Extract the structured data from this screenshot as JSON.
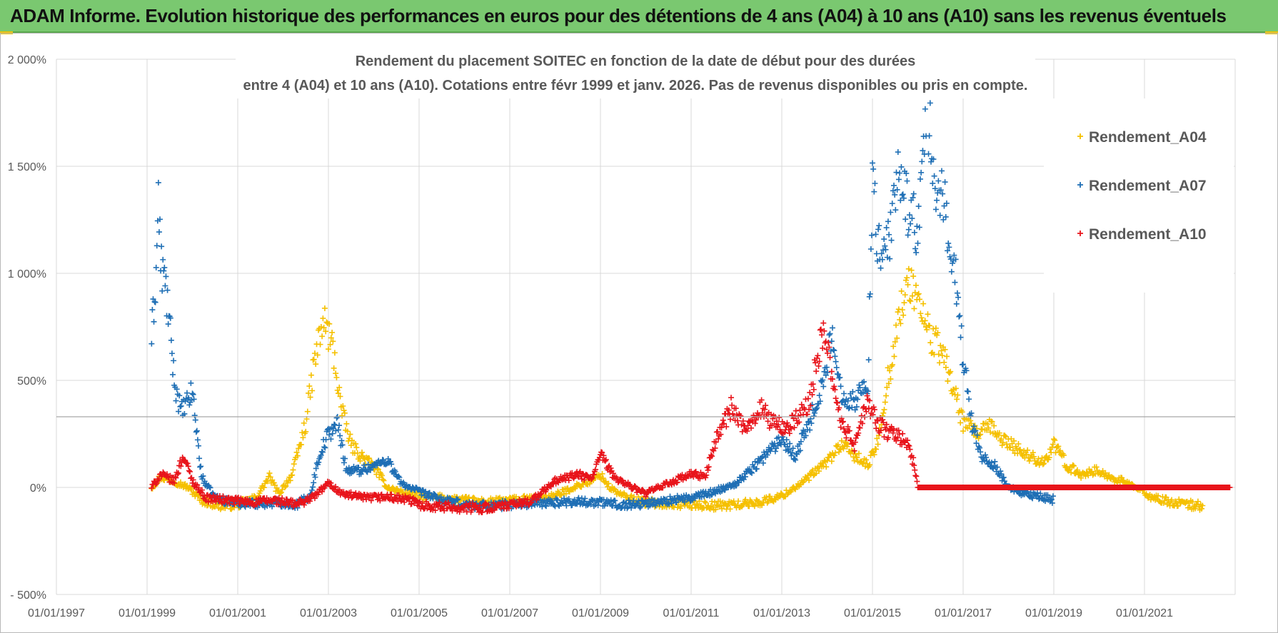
{
  "banner": {
    "title": "ADAM Informe. Evolution historique des performances en euros pour des détentions de 4 ans (A04) à 10 ans (A10) sans les revenus éventuels"
  },
  "chart_data": {
    "type": "scatter",
    "title_line1": "Rendement du placement SOITEC en fonction de la date de début pour des durées",
    "title_line2": "entre 4 (A04) et 10 ans (A10).  Cotations entre févr 1999 et janv. 2026. Pas de revenus disponibles ou pris en compte.",
    "xlabel": "",
    "ylabel": "",
    "x_ticks": [
      "01/01/1997",
      "01/01/1999",
      "01/01/2001",
      "01/01/2003",
      "01/01/2005",
      "01/01/2007",
      "01/01/2009",
      "01/01/2011",
      "01/01/2013",
      "01/01/2015",
      "01/01/2017",
      "01/01/2019",
      "01/01/2021"
    ],
    "y_ticks": [
      "- 500%",
      "0%",
      "500%",
      "1 000%",
      "1 500%",
      "2 000%"
    ],
    "y_tick_values": [
      -500,
      0,
      500,
      1000,
      1500,
      2000
    ],
    "xlim": [
      1997.0,
      2023.0
    ],
    "ylim": [
      -500,
      2000
    ],
    "reference_line_y": 330,
    "marker": "+",
    "legend_position": "right",
    "series": [
      {
        "name": "Rendement_A04",
        "color": "#f5c000",
        "points": [
          [
            1999.1,
            0
          ],
          [
            1999.3,
            50
          ],
          [
            1999.6,
            30
          ],
          [
            1999.9,
            0
          ],
          [
            2000.2,
            -60
          ],
          [
            2000.6,
            -85
          ],
          [
            2001.0,
            -80
          ],
          [
            2001.4,
            -50
          ],
          [
            2001.7,
            50
          ],
          [
            2001.9,
            -30
          ],
          [
            2002.2,
            60
          ],
          [
            2002.5,
            300
          ],
          [
            2002.7,
            600
          ],
          [
            2002.9,
            780
          ],
          [
            2003.1,
            650
          ],
          [
            2003.3,
            350
          ],
          [
            2003.5,
            200
          ],
          [
            2003.7,
            150
          ],
          [
            2004.0,
            100
          ],
          [
            2004.3,
            0
          ],
          [
            2004.6,
            -20
          ],
          [
            2005.0,
            -40
          ],
          [
            2005.5,
            -50
          ],
          [
            2006.0,
            -60
          ],
          [
            2006.5,
            -70
          ],
          [
            2007.0,
            -60
          ],
          [
            2007.5,
            -55
          ],
          [
            2008.0,
            -40
          ],
          [
            2008.4,
            0
          ],
          [
            2008.8,
            30
          ],
          [
            2009.0,
            60
          ],
          [
            2009.2,
            0
          ],
          [
            2009.5,
            -40
          ],
          [
            2010.0,
            -70
          ],
          [
            2010.5,
            -75
          ],
          [
            2011.0,
            -80
          ],
          [
            2011.5,
            -85
          ],
          [
            2012.0,
            -80
          ],
          [
            2012.5,
            -70
          ],
          [
            2013.0,
            -40
          ],
          [
            2013.5,
            30
          ],
          [
            2014.0,
            120
          ],
          [
            2014.3,
            200
          ],
          [
            2014.6,
            150
          ],
          [
            2014.9,
            100
          ],
          [
            2015.1,
            200
          ],
          [
            2015.3,
            450
          ],
          [
            2015.5,
            700
          ],
          [
            2015.7,
            900
          ],
          [
            2015.9,
            950
          ],
          [
            2016.1,
            800
          ],
          [
            2016.3,
            700
          ],
          [
            2016.6,
            600
          ],
          [
            2016.8,
            450
          ],
          [
            2017.0,
            300
          ],
          [
            2017.3,
            250
          ],
          [
            2017.6,
            280
          ],
          [
            2017.9,
            220
          ],
          [
            2018.2,
            180
          ],
          [
            2018.5,
            140
          ],
          [
            2018.8,
            120
          ],
          [
            2019.0,
            200
          ],
          [
            2019.3,
            100
          ],
          [
            2019.6,
            60
          ],
          [
            2019.9,
            80
          ],
          [
            2020.2,
            50
          ],
          [
            2020.5,
            30
          ],
          [
            2020.8,
            0
          ],
          [
            2021.2,
            -50
          ],
          [
            2021.6,
            -70
          ],
          [
            2022.0,
            -80
          ],
          [
            2022.3,
            -90
          ]
        ]
      },
      {
        "name": "Rendement_A07",
        "color": "#1f6fb5",
        "points": [
          [
            1999.1,
            700
          ],
          [
            1999.2,
            1000
          ],
          [
            1999.25,
            1370
          ],
          [
            1999.3,
            1050
          ],
          [
            1999.4,
            950
          ],
          [
            1999.5,
            750
          ],
          [
            1999.6,
            500
          ],
          [
            1999.75,
            350
          ],
          [
            1999.9,
            400
          ],
          [
            2000.0,
            450
          ],
          [
            2000.1,
            250
          ],
          [
            2000.2,
            50
          ],
          [
            2000.5,
            -50
          ],
          [
            2000.9,
            -70
          ],
          [
            2001.4,
            -75
          ],
          [
            2001.9,
            -70
          ],
          [
            2002.3,
            -80
          ],
          [
            2002.6,
            -40
          ],
          [
            2002.8,
            150
          ],
          [
            2003.0,
            250
          ],
          [
            2003.2,
            300
          ],
          [
            2003.4,
            80
          ],
          [
            2003.7,
            80
          ],
          [
            2004.0,
            100
          ],
          [
            2004.3,
            130
          ],
          [
            2004.6,
            20
          ],
          [
            2005.0,
            -20
          ],
          [
            2005.5,
            -60
          ],
          [
            2006.0,
            -80
          ],
          [
            2006.5,
            -85
          ],
          [
            2007.0,
            -80
          ],
          [
            2007.5,
            -75
          ],
          [
            2008.0,
            -70
          ],
          [
            2008.5,
            -65
          ],
          [
            2009.0,
            -70
          ],
          [
            2009.5,
            -80
          ],
          [
            2010.0,
            -75
          ],
          [
            2010.5,
            -60
          ],
          [
            2011.0,
            -50
          ],
          [
            2011.5,
            -20
          ],
          [
            2012.0,
            20
          ],
          [
            2012.5,
            120
          ],
          [
            2013.0,
            230
          ],
          [
            2013.3,
            150
          ],
          [
            2013.6,
            300
          ],
          [
            2013.9,
            480
          ],
          [
            2014.1,
            700
          ],
          [
            2014.3,
            450
          ],
          [
            2014.6,
            400
          ],
          [
            2014.9,
            500
          ],
          [
            2015.0,
            1400
          ],
          [
            2015.2,
            1000
          ],
          [
            2015.4,
            1200
          ],
          [
            2015.6,
            1480
          ],
          [
            2015.8,
            1300
          ],
          [
            2016.0,
            1200
          ],
          [
            2016.2,
            1750
          ],
          [
            2016.4,
            1400
          ],
          [
            2016.6,
            1300
          ],
          [
            2016.8,
            1050
          ],
          [
            2017.0,
            600
          ],
          [
            2017.2,
            300
          ],
          [
            2017.4,
            150
          ],
          [
            2017.7,
            100
          ],
          [
            2018.0,
            0
          ],
          [
            2018.3,
            -30
          ],
          [
            2018.6,
            -40
          ],
          [
            2018.9,
            -50
          ],
          [
            2019.0,
            -60
          ]
        ]
      },
      {
        "name": "Rendement_A10",
        "color": "#e8141b",
        "points": [
          [
            1999.1,
            0
          ],
          [
            1999.3,
            60
          ],
          [
            1999.6,
            30
          ],
          [
            1999.8,
            150
          ],
          [
            2000.0,
            30
          ],
          [
            2000.3,
            -50
          ],
          [
            2000.8,
            -60
          ],
          [
            2001.3,
            -70
          ],
          [
            2001.8,
            -60
          ],
          [
            2002.3,
            -80
          ],
          [
            2002.7,
            -40
          ],
          [
            2003.0,
            20
          ],
          [
            2003.3,
            -30
          ],
          [
            2003.8,
            -50
          ],
          [
            2004.3,
            -45
          ],
          [
            2004.8,
            -60
          ],
          [
            2005.0,
            -80
          ],
          [
            2005.5,
            -90
          ],
          [
            2006.0,
            -95
          ],
          [
            2006.5,
            -95
          ],
          [
            2007.0,
            -85
          ],
          [
            2007.5,
            -60
          ],
          [
            2008.0,
            30
          ],
          [
            2008.5,
            60
          ],
          [
            2008.8,
            40
          ],
          [
            2009.0,
            150
          ],
          [
            2009.3,
            50
          ],
          [
            2009.7,
            0
          ],
          [
            2010.0,
            -30
          ],
          [
            2010.5,
            20
          ],
          [
            2011.0,
            60
          ],
          [
            2011.3,
            50
          ],
          [
            2011.6,
            250
          ],
          [
            2011.9,
            380
          ],
          [
            2012.2,
            250
          ],
          [
            2012.5,
            380
          ],
          [
            2012.8,
            300
          ],
          [
            2013.1,
            280
          ],
          [
            2013.4,
            330
          ],
          [
            2013.6,
            400
          ],
          [
            2013.9,
            720
          ],
          [
            2014.1,
            550
          ],
          [
            2014.3,
            300
          ],
          [
            2014.6,
            200
          ],
          [
            2014.9,
            400
          ],
          [
            2015.1,
            300
          ],
          [
            2015.4,
            250
          ],
          [
            2015.7,
            230
          ],
          [
            2015.9,
            120
          ],
          [
            2016.0,
            0
          ],
          [
            2017.0,
            0
          ],
          [
            2018.0,
            0
          ],
          [
            2019.0,
            0
          ],
          [
            2020.0,
            0
          ],
          [
            2021.0,
            0
          ],
          [
            2022.0,
            0
          ],
          [
            2022.9,
            0
          ]
        ]
      }
    ]
  }
}
